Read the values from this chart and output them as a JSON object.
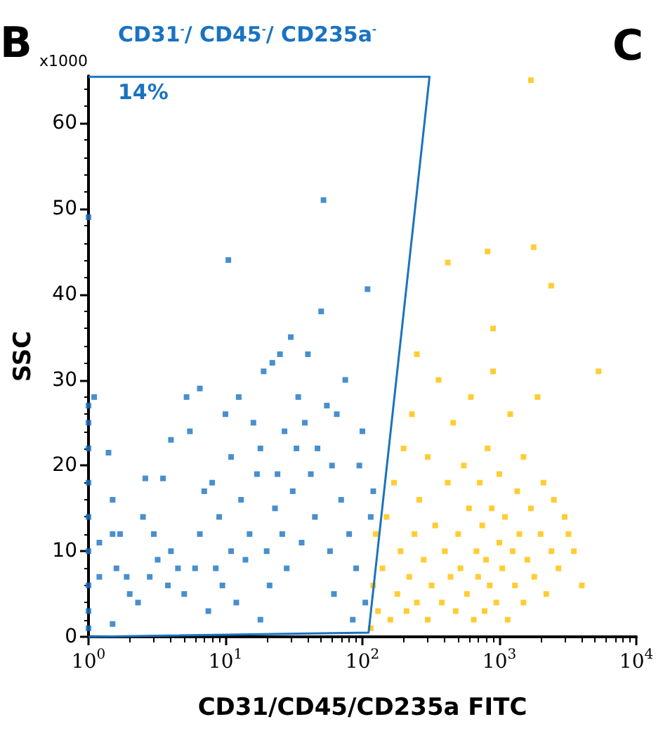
{
  "chart_data": {
    "type": "scatter",
    "xlabel": "CD31/CD45/CD235a FITC",
    "ylabel": "SSC",
    "log": "x",
    "grid": false,
    "marker": "square",
    "xlim": [
      1,
      10000
    ],
    "xticks": [
      {
        "value": 1,
        "label": "10$^{0}$"
      },
      {
        "value": 10,
        "label": "10$^{1}$"
      },
      {
        "value": 100,
        "label": "10$^{2}$"
      },
      {
        "value": 1000,
        "label": "10$^{3}$"
      },
      {
        "value": 10000,
        "label": "10$^{4}$"
      }
    ],
    "ylim": [
      0,
      65.5
    ],
    "yticks": [
      0,
      10,
      20,
      30,
      40,
      50,
      60
    ],
    "annotations": [
      "B",
      "C",
      "x1000",
      "CD31$^{-}$/ CD45$^{-}$/ CD235a$^{-}$",
      "14%"
    ],
    "series": [
      {
        "color": "#1a73c1",
        "x": [
          1,
          1,
          1,
          1,
          1,
          1,
          1,
          1,
          1,
          1,
          1.1,
          1.2,
          1.2,
          1.4,
          1.5,
          1.5,
          1.5,
          1.6,
          1.7,
          1.9,
          2,
          2.3,
          2.5,
          2.6,
          2.8,
          3,
          3.2,
          3.5,
          3.8,
          4,
          4,
          4.5,
          5,
          5.2,
          5.5,
          6,
          6.5,
          6.5,
          7,
          7.5,
          8,
          8.5,
          9,
          9.5,
          10,
          10.5,
          11,
          11,
          12,
          12.5,
          13,
          14,
          15,
          16,
          17,
          18,
          18,
          19,
          20,
          21,
          22,
          23,
          24,
          25,
          26,
          27,
          28,
          30,
          31,
          33,
          34,
          36,
          38,
          40,
          42,
          45,
          47,
          50,
          52,
          55,
          58,
          60,
          62,
          65,
          70,
          75,
          80,
          85,
          90,
          95,
          100,
          109,
          115,
          105,
          120
        ],
        "values": [
          49,
          27,
          25,
          22,
          18,
          14,
          10,
          6,
          3,
          1,
          28,
          11,
          7,
          21.5,
          16,
          12,
          1.5,
          8,
          12,
          7,
          5,
          4,
          14,
          18.5,
          7,
          12,
          9,
          18.5,
          6,
          23,
          10,
          8,
          5,
          28,
          24,
          8,
          29,
          12,
          17,
          3,
          18,
          8,
          14,
          6,
          26,
          44,
          21,
          10,
          4,
          28,
          16,
          9,
          12,
          25,
          19,
          22,
          2,
          31,
          10,
          6,
          32,
          15,
          19,
          33,
          12,
          24,
          8,
          35,
          17,
          22,
          28,
          11,
          25,
          33,
          19,
          14,
          22,
          38,
          51,
          27,
          10,
          20,
          5,
          26,
          16,
          30,
          12,
          2,
          8,
          20,
          24,
          40.6,
          14,
          4,
          17
        ]
      },
      {
        "color": "#ffc000",
        "x": [
          115,
          120,
          125,
          130,
          140,
          150,
          160,
          170,
          180,
          190,
          200,
          210,
          220,
          230,
          240,
          250,
          260,
          280,
          300,
          300,
          320,
          340,
          360,
          380,
          400,
          420,
          440,
          460,
          480,
          500,
          520,
          550,
          580,
          600,
          620,
          650,
          680,
          700,
          720,
          750,
          780,
          800,
          820,
          850,
          880,
          900,
          950,
          1000,
          1000,
          1050,
          1100,
          1150,
          1200,
          1250,
          1300,
          1350,
          1400,
          1500,
          1500,
          1600,
          1700,
          1800,
          1900,
          2000,
          2100,
          2200,
          2400,
          2500,
          2700,
          3000,
          3200,
          3500,
          4000,
          1700,
          820,
          1780,
          420,
          2390,
          900,
          5300,
          250
        ],
        "values": [
          1,
          6,
          12,
          3,
          8,
          14,
          2,
          18,
          5,
          10,
          22,
          3,
          7,
          26,
          12,
          4,
          16,
          9,
          2,
          21,
          6,
          13,
          30,
          4,
          10,
          18,
          7,
          25,
          3,
          12,
          8,
          20,
          5,
          15,
          28,
          2,
          10,
          7,
          18,
          13,
          3,
          9,
          22,
          6,
          15,
          31,
          4,
          11,
          19,
          8,
          14,
          2,
          26,
          10,
          6,
          17,
          12,
          4,
          21,
          9,
          15,
          7,
          28,
          12,
          18,
          5,
          10,
          16,
          8,
          14,
          12,
          10,
          6,
          65,
          45,
          45.5,
          43.7,
          41,
          36,
          31,
          33
        ]
      },
      {
        "type": "line",
        "color": "#1a73c1",
        "line_style": "solid",
        "marker": "none",
        "x": [
          1,
          309,
          111,
          1
        ],
        "values": [
          65.4,
          65.4,
          0.5,
          0
        ]
      }
    ]
  }
}
